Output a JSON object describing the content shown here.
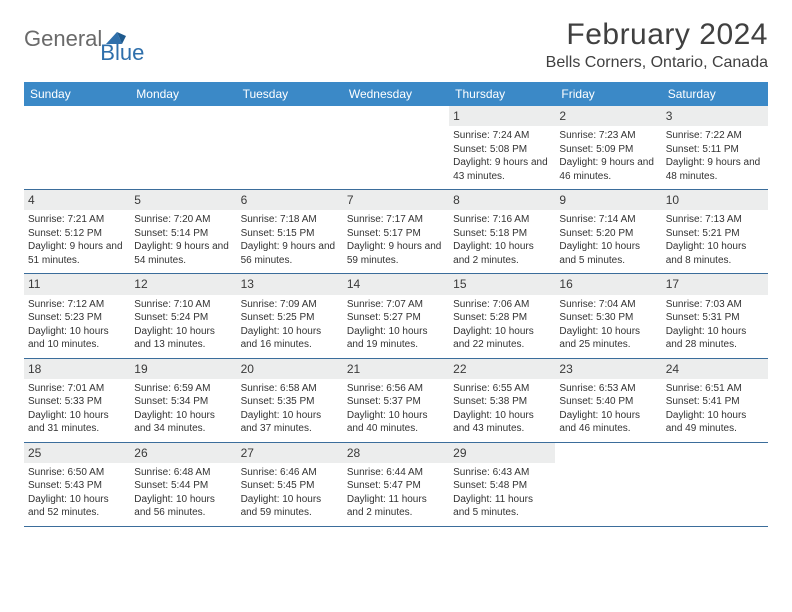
{
  "logo": {
    "text1": "General",
    "text2": "Blue"
  },
  "title": "February 2024",
  "location": "Bells Corners, Ontario, Canada",
  "weekdays": [
    "Sunday",
    "Monday",
    "Tuesday",
    "Wednesday",
    "Thursday",
    "Friday",
    "Saturday"
  ],
  "colors": {
    "header_bg": "#3b89c7",
    "header_text": "#ffffff",
    "border": "#3b6d9b",
    "shaded": "#eceded",
    "logo_gray": "#6a6a6a",
    "logo_blue": "#2f6fab"
  },
  "weeks": [
    [
      null,
      null,
      null,
      null,
      {
        "n": "1",
        "sr": "Sunrise: 7:24 AM",
        "ss": "Sunset: 5:08 PM",
        "dl": "Daylight: 9 hours and 43 minutes."
      },
      {
        "n": "2",
        "sr": "Sunrise: 7:23 AM",
        "ss": "Sunset: 5:09 PM",
        "dl": "Daylight: 9 hours and 46 minutes."
      },
      {
        "n": "3",
        "sr": "Sunrise: 7:22 AM",
        "ss": "Sunset: 5:11 PM",
        "dl": "Daylight: 9 hours and 48 minutes."
      }
    ],
    [
      {
        "n": "4",
        "sr": "Sunrise: 7:21 AM",
        "ss": "Sunset: 5:12 PM",
        "dl": "Daylight: 9 hours and 51 minutes."
      },
      {
        "n": "5",
        "sr": "Sunrise: 7:20 AM",
        "ss": "Sunset: 5:14 PM",
        "dl": "Daylight: 9 hours and 54 minutes."
      },
      {
        "n": "6",
        "sr": "Sunrise: 7:18 AM",
        "ss": "Sunset: 5:15 PM",
        "dl": "Daylight: 9 hours and 56 minutes."
      },
      {
        "n": "7",
        "sr": "Sunrise: 7:17 AM",
        "ss": "Sunset: 5:17 PM",
        "dl": "Daylight: 9 hours and 59 minutes."
      },
      {
        "n": "8",
        "sr": "Sunrise: 7:16 AM",
        "ss": "Sunset: 5:18 PM",
        "dl": "Daylight: 10 hours and 2 minutes."
      },
      {
        "n": "9",
        "sr": "Sunrise: 7:14 AM",
        "ss": "Sunset: 5:20 PM",
        "dl": "Daylight: 10 hours and 5 minutes."
      },
      {
        "n": "10",
        "sr": "Sunrise: 7:13 AM",
        "ss": "Sunset: 5:21 PM",
        "dl": "Daylight: 10 hours and 8 minutes."
      }
    ],
    [
      {
        "n": "11",
        "sr": "Sunrise: 7:12 AM",
        "ss": "Sunset: 5:23 PM",
        "dl": "Daylight: 10 hours and 10 minutes."
      },
      {
        "n": "12",
        "sr": "Sunrise: 7:10 AM",
        "ss": "Sunset: 5:24 PM",
        "dl": "Daylight: 10 hours and 13 minutes."
      },
      {
        "n": "13",
        "sr": "Sunrise: 7:09 AM",
        "ss": "Sunset: 5:25 PM",
        "dl": "Daylight: 10 hours and 16 minutes."
      },
      {
        "n": "14",
        "sr": "Sunrise: 7:07 AM",
        "ss": "Sunset: 5:27 PM",
        "dl": "Daylight: 10 hours and 19 minutes."
      },
      {
        "n": "15",
        "sr": "Sunrise: 7:06 AM",
        "ss": "Sunset: 5:28 PM",
        "dl": "Daylight: 10 hours and 22 minutes."
      },
      {
        "n": "16",
        "sr": "Sunrise: 7:04 AM",
        "ss": "Sunset: 5:30 PM",
        "dl": "Daylight: 10 hours and 25 minutes."
      },
      {
        "n": "17",
        "sr": "Sunrise: 7:03 AM",
        "ss": "Sunset: 5:31 PM",
        "dl": "Daylight: 10 hours and 28 minutes."
      }
    ],
    [
      {
        "n": "18",
        "sr": "Sunrise: 7:01 AM",
        "ss": "Sunset: 5:33 PM",
        "dl": "Daylight: 10 hours and 31 minutes."
      },
      {
        "n": "19",
        "sr": "Sunrise: 6:59 AM",
        "ss": "Sunset: 5:34 PM",
        "dl": "Daylight: 10 hours and 34 minutes."
      },
      {
        "n": "20",
        "sr": "Sunrise: 6:58 AM",
        "ss": "Sunset: 5:35 PM",
        "dl": "Daylight: 10 hours and 37 minutes."
      },
      {
        "n": "21",
        "sr": "Sunrise: 6:56 AM",
        "ss": "Sunset: 5:37 PM",
        "dl": "Daylight: 10 hours and 40 minutes."
      },
      {
        "n": "22",
        "sr": "Sunrise: 6:55 AM",
        "ss": "Sunset: 5:38 PM",
        "dl": "Daylight: 10 hours and 43 minutes."
      },
      {
        "n": "23",
        "sr": "Sunrise: 6:53 AM",
        "ss": "Sunset: 5:40 PM",
        "dl": "Daylight: 10 hours and 46 minutes."
      },
      {
        "n": "24",
        "sr": "Sunrise: 6:51 AM",
        "ss": "Sunset: 5:41 PM",
        "dl": "Daylight: 10 hours and 49 minutes."
      }
    ],
    [
      {
        "n": "25",
        "sr": "Sunrise: 6:50 AM",
        "ss": "Sunset: 5:43 PM",
        "dl": "Daylight: 10 hours and 52 minutes."
      },
      {
        "n": "26",
        "sr": "Sunrise: 6:48 AM",
        "ss": "Sunset: 5:44 PM",
        "dl": "Daylight: 10 hours and 56 minutes."
      },
      {
        "n": "27",
        "sr": "Sunrise: 6:46 AM",
        "ss": "Sunset: 5:45 PM",
        "dl": "Daylight: 10 hours and 59 minutes."
      },
      {
        "n": "28",
        "sr": "Sunrise: 6:44 AM",
        "ss": "Sunset: 5:47 PM",
        "dl": "Daylight: 11 hours and 2 minutes."
      },
      {
        "n": "29",
        "sr": "Sunrise: 6:43 AM",
        "ss": "Sunset: 5:48 PM",
        "dl": "Daylight: 11 hours and 5 minutes."
      },
      null,
      null
    ]
  ]
}
